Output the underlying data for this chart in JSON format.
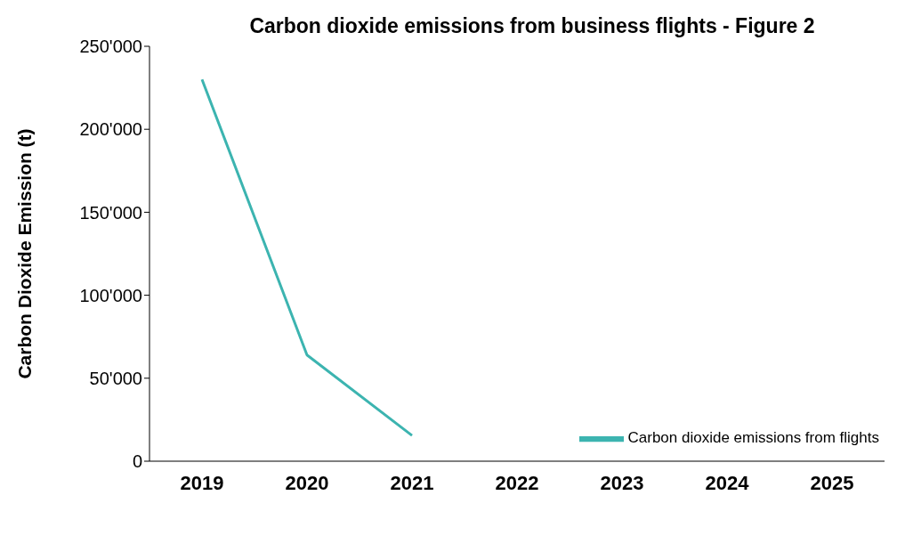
{
  "chart_data": {
    "type": "line",
    "title": "Carbon dioxide emissions from business flights - Figure 2",
    "ylabel": "Carbon Dioxide Emission (t)",
    "categories": [
      "2019",
      "2020",
      "2021",
      "2022",
      "2023",
      "2024",
      "2025"
    ],
    "series": [
      {
        "name": "Carbon dioxide emissions from flights",
        "color": "#3cb4b0",
        "values": [
          230000,
          64000,
          15500,
          null,
          null,
          null,
          null
        ]
      }
    ],
    "ylim": [
      0,
      250000
    ],
    "yticks": [
      0,
      {
        "value": 50000,
        "label": "50'000"
      },
      {
        "value": 100000,
        "label": "100'000"
      },
      {
        "value": 150000,
        "label": "150'000"
      },
      {
        "value": 200000,
        "label": "200'000"
      },
      {
        "value": 250000,
        "label": "250'000"
      }
    ],
    "legend": "bottom right",
    "grid": false,
    "marker": "none",
    "line_style": "solid"
  }
}
